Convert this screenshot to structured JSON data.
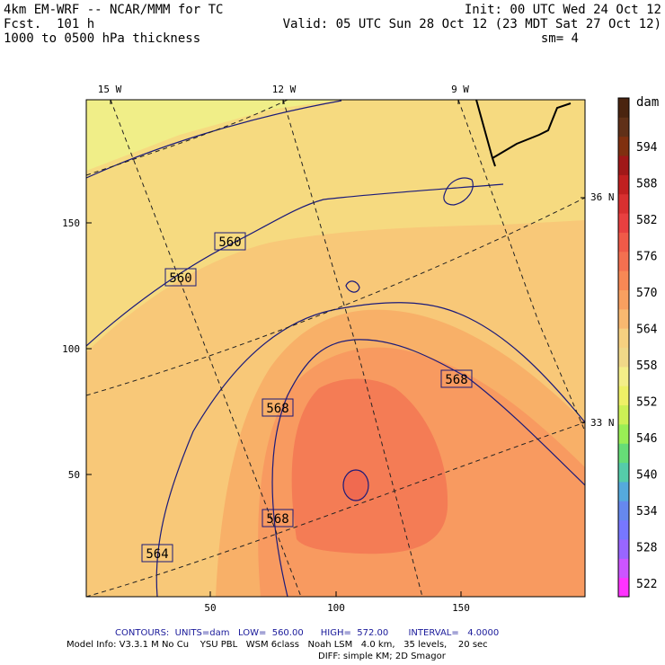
{
  "header": {
    "model": "4km EM-WRF -- NCAR/MMM for TC",
    "fcst": "Fcst.  101 h",
    "field": "1000 to 0500 hPa thickness",
    "init": "Init: 00 UTC Wed 24 Oct 12",
    "valid": "Valid: 05 UTC Sun 28 Oct 12 (23 MDT Sat 27 Oct 12)",
    "smooth": "sm= 4"
  },
  "lon_labels": [
    "15 W",
    "12 W",
    "9 W"
  ],
  "lat_labels": [
    "36 N",
    "33 N"
  ],
  "x_ticks": [
    "50",
    "100",
    "150"
  ],
  "y_ticks": [
    "150",
    "100",
    "50"
  ],
  "contour_labels": [
    "560",
    "560",
    "568",
    "568",
    "568",
    "564"
  ],
  "colorbar": {
    "unit": "dam",
    "labels": [
      "594",
      "588",
      "582",
      "576",
      "570",
      "564",
      "558",
      "552",
      "546",
      "540",
      "534",
      "528",
      "522"
    ],
    "colors": [
      "#ff33ff",
      "#cc55ff",
      "#9966ff",
      "#7777ff",
      "#6688ee",
      "#55aadd",
      "#55ccaa",
      "#66dd77",
      "#99ee55",
      "#ccf055",
      "#eef066",
      "#f4ee88",
      "#f0d888",
      "#f6d080",
      "#f8b870",
      "#f8a060",
      "#f78855",
      "#f47050",
      "#f05a48",
      "#e84040",
      "#d83030",
      "#c02020",
      "#a01818",
      "#803010",
      "#603018",
      "#4a2410"
    ]
  },
  "footer": {
    "contours": "CONTOURS:  UNITS=dam   LOW=  560.00      HIGH=  572.00       INTERVAL=   4.0000",
    "model_info": "Model Info: V3.3.1 M No Cu    YSU PBL   WSM 6class   Noah LSM   4.0 km,   35 levels,    20 sec",
    "diff": "DIFF: simple KM; 2D Smagor"
  }
}
